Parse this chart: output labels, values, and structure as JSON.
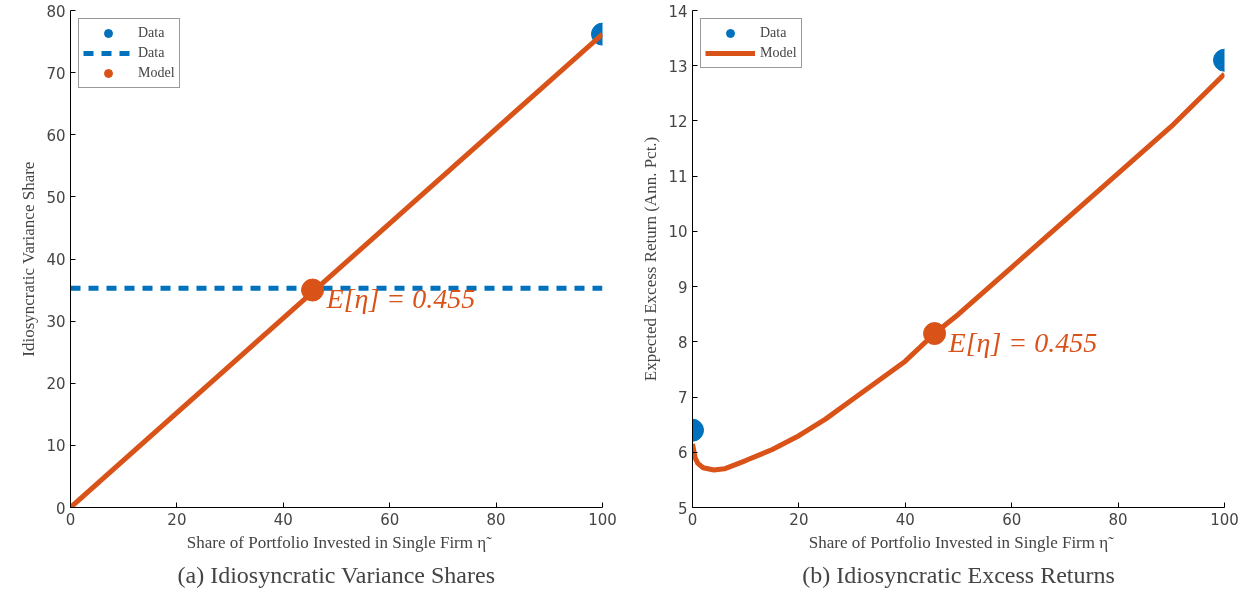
{
  "chart_data": [
    {
      "type": "line",
      "title": "(a) Idiosyncratic Variance Shares",
      "xlabel": "Share of Portfolio Invested in Single Firm η̃",
      "ylabel": "Idiosyncratic Variance Share",
      "xlim": [
        0,
        100
      ],
      "xticks": [
        0,
        20,
        40,
        60,
        80,
        100
      ],
      "ylim": [
        0,
        80
      ],
      "yticks": [
        0,
        10,
        20,
        30,
        40,
        50,
        60,
        70,
        80
      ],
      "grid": false,
      "legend": "top left",
      "series": [
        {
          "name": "Data",
          "type": "scatter",
          "marker": "circle",
          "color": "#0072bd",
          "x": [
            100
          ],
          "values": [
            76.2
          ]
        },
        {
          "name": "Data",
          "line_style": "dashed",
          "color": "#0072bd",
          "x": [
            0,
            100
          ],
          "values": [
            35.3,
            35.3
          ]
        },
        {
          "name": "Model",
          "type": "scatter",
          "marker": "circle",
          "color": "#d95319",
          "x": [
            45.5
          ],
          "values": [
            35
          ]
        },
        {
          "line_style": "solid",
          "color": "#d95319",
          "x": [
            0,
            100
          ],
          "values": [
            0,
            76.2
          ]
        }
      ],
      "annotations": [
        {
          "text": "E[η] = 0.455",
          "x": 45.5,
          "y": 35
        }
      ]
    },
    {
      "type": "line",
      "title": "(b) Idiosyncratic Excess Returns",
      "xlabel": "Share of Portfolio Invested in Single Firm η̃",
      "ylabel": "Expected Excess Return (Ann. Pct.)",
      "xlim": [
        0,
        100
      ],
      "xticks": [
        0,
        20,
        40,
        60,
        80,
        100
      ],
      "ylim": [
        5,
        14
      ],
      "yticks": [
        5,
        6,
        7,
        8,
        9,
        10,
        11,
        12,
        13,
        14
      ],
      "grid": false,
      "legend": "top left",
      "series": [
        {
          "name": "Data",
          "type": "scatter",
          "marker": "circle",
          "color": "#0072bd",
          "x": [
            0,
            100
          ],
          "values": [
            6.4,
            13.1
          ]
        },
        {
          "name": "Model",
          "line_style": "solid",
          "color": "#d95319",
          "x": [
            0,
            0.5,
            1,
            2,
            4,
            6,
            10,
            15,
            20,
            25,
            30,
            40,
            45.5,
            50,
            60,
            70,
            80,
            90,
            100
          ],
          "values": [
            6.15,
            5.9,
            5.8,
            5.72,
            5.68,
            5.7,
            5.85,
            6.05,
            6.3,
            6.6,
            6.95,
            7.65,
            8.15,
            8.5,
            9.35,
            10.2,
            11.05,
            11.9,
            12.85
          ]
        },
        {
          "type": "scatter",
          "marker": "circle",
          "color": "#d95319",
          "x": [
            45.5
          ],
          "values": [
            8.15
          ]
        }
      ],
      "annotations": [
        {
          "text": "E[η] = 0.455",
          "x": 45.5,
          "y": 8.15
        }
      ]
    }
  ]
}
